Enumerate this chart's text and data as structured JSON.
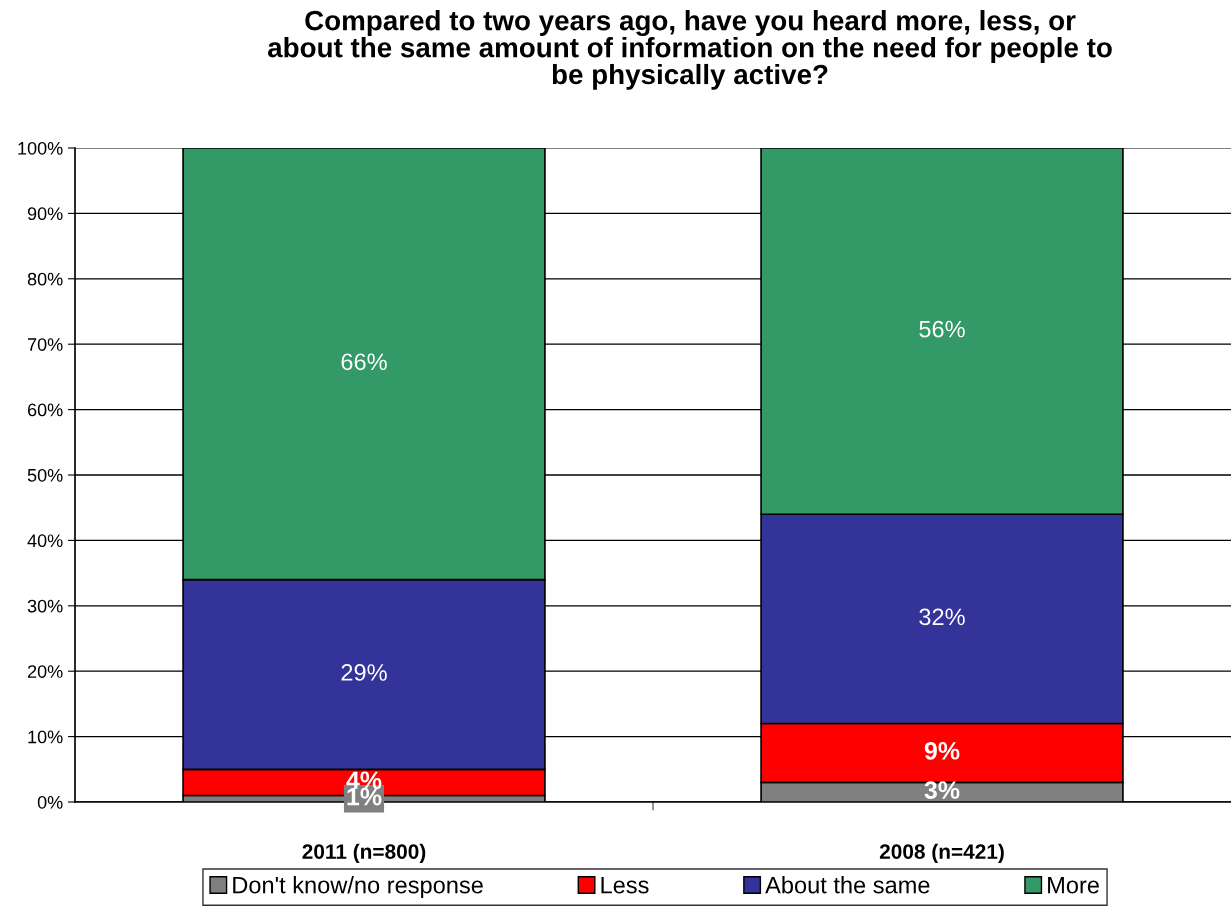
{
  "chart_data": {
    "type": "bar",
    "title": "Compared to two years ago, have you heard more, less, or\nabout the same amount of information on the need for people to\nbe physically active?",
    "categories": [
      "2011 (n=800)",
      "2008 (n=421)"
    ],
    "stacked": true,
    "series": [
      {
        "name": "Don't know/no response",
        "color": "#808080",
        "values": [
          1,
          3
        ],
        "value_labels": [
          "1%",
          "3%"
        ]
      },
      {
        "name": "Less",
        "color": "#ff0000",
        "values": [
          4,
          9
        ],
        "value_labels": [
          "4%",
          "9%"
        ]
      },
      {
        "name": "About the same",
        "color": "#333399",
        "values": [
          29,
          32
        ],
        "value_labels": [
          "29%",
          "32%"
        ]
      },
      {
        "name": "More",
        "color": "#339966",
        "values": [
          66,
          56
        ],
        "value_labels": [
          "66%",
          "56%"
        ]
      }
    ],
    "ylim": [
      0,
      100
    ],
    "yticks": [
      {
        "value": 0,
        "label": "0%"
      },
      {
        "value": 10,
        "label": "10%"
      },
      {
        "value": 20,
        "label": "20%"
      },
      {
        "value": 30,
        "label": "30%"
      },
      {
        "value": 40,
        "label": "40%"
      },
      {
        "value": 50,
        "label": "50%"
      },
      {
        "value": 60,
        "label": "60%"
      },
      {
        "value": 70,
        "label": "70%"
      },
      {
        "value": 80,
        "label": "80%"
      },
      {
        "value": 90,
        "label": "90%"
      },
      {
        "value": 100,
        "label": "100%"
      }
    ],
    "grid": "y",
    "legend": "bottom"
  }
}
